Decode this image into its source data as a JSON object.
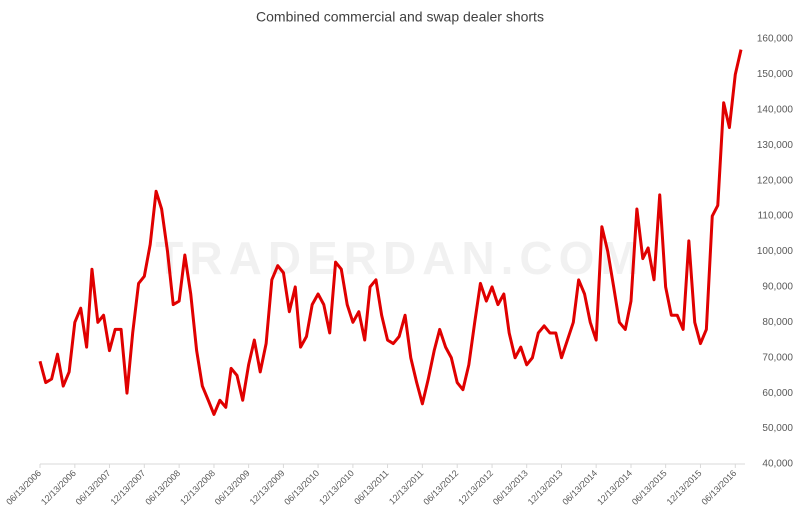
{
  "chart_data": {
    "type": "line",
    "title": "Combined commercial and swap dealer shorts",
    "watermark": "TRADERDAN.COM",
    "x": [
      "06/13/2006",
      "07/13/2006",
      "08/13/2006",
      "09/13/2006",
      "10/13/2006",
      "11/13/2006",
      "12/13/2006",
      "01/13/2007",
      "02/13/2007",
      "03/13/2007",
      "04/13/2007",
      "05/13/2007",
      "06/13/2007",
      "07/13/2007",
      "08/13/2007",
      "09/13/2007",
      "10/13/2007",
      "11/13/2007",
      "12/13/2007",
      "01/13/2008",
      "02/13/2008",
      "03/13/2008",
      "04/13/2008",
      "05/13/2008",
      "06/13/2008",
      "07/13/2008",
      "08/13/2008",
      "09/13/2008",
      "10/13/2008",
      "11/13/2008",
      "12/13/2008",
      "01/13/2009",
      "02/13/2009",
      "03/13/2009",
      "04/13/2009",
      "05/13/2009",
      "06/13/2009",
      "07/13/2009",
      "08/13/2009",
      "09/13/2009",
      "10/13/2009",
      "11/13/2009",
      "12/13/2009",
      "01/13/2010",
      "02/13/2010",
      "03/13/2010",
      "04/13/2010",
      "05/13/2010",
      "06/13/2010",
      "07/13/2010",
      "08/13/2010",
      "09/13/2010",
      "10/13/2010",
      "11/13/2010",
      "12/13/2010",
      "01/13/2011",
      "02/13/2011",
      "03/13/2011",
      "04/13/2011",
      "05/13/2011",
      "06/13/2011",
      "07/13/2011",
      "08/13/2011",
      "09/13/2011",
      "10/13/2011",
      "11/13/2011",
      "12/13/2011",
      "01/13/2012",
      "02/13/2012",
      "03/13/2012",
      "04/13/2012",
      "05/13/2012",
      "06/13/2012",
      "07/13/2012",
      "08/13/2012",
      "09/13/2012",
      "10/13/2012",
      "11/13/2012",
      "12/13/2012",
      "01/13/2013",
      "02/13/2013",
      "03/13/2013",
      "04/13/2013",
      "05/13/2013",
      "06/13/2013",
      "07/13/2013",
      "08/13/2013",
      "09/13/2013",
      "10/13/2013",
      "11/13/2013",
      "12/13/2013",
      "01/13/2014",
      "02/13/2014",
      "03/13/2014",
      "04/13/2014",
      "05/13/2014",
      "06/13/2014",
      "07/13/2014",
      "08/13/2014",
      "09/13/2014",
      "10/13/2014",
      "11/13/2014",
      "12/13/2014",
      "01/13/2015",
      "02/13/2015",
      "03/13/2015",
      "04/13/2015",
      "05/13/2015",
      "06/13/2015",
      "07/13/2015",
      "08/13/2015",
      "09/13/2015",
      "10/13/2015",
      "11/13/2015",
      "12/13/2015",
      "01/13/2016",
      "02/13/2016",
      "03/13/2016",
      "04/13/2016",
      "05/13/2016",
      "06/13/2016",
      "07/13/2016"
    ],
    "series": [
      {
        "name": "Combined commercial and swap dealer shorts",
        "color": "#e00000",
        "values": [
          69000,
          63000,
          64000,
          71000,
          62000,
          66000,
          80000,
          84000,
          73000,
          95000,
          80000,
          82000,
          72000,
          78000,
          78000,
          60000,
          77000,
          91000,
          93000,
          102000,
          117000,
          112000,
          100000,
          85000,
          86000,
          99000,
          88000,
          72000,
          62000,
          58000,
          54000,
          58000,
          56000,
          67000,
          65000,
          58000,
          68000,
          75000,
          66000,
          74000,
          92000,
          96000,
          94000,
          83000,
          90000,
          73000,
          76000,
          85000,
          88000,
          85000,
          77000,
          97000,
          95000,
          85000,
          80000,
          83000,
          75000,
          90000,
          92000,
          82000,
          75000,
          74000,
          76000,
          82000,
          70000,
          63000,
          57000,
          64000,
          72000,
          78000,
          73000,
          70000,
          63000,
          61000,
          68000,
          80000,
          91000,
          86000,
          90000,
          85000,
          88000,
          77000,
          70000,
          73000,
          68000,
          70000,
          77000,
          79000,
          77000,
          77000,
          70000,
          75000,
          80000,
          92000,
          88000,
          80000,
          75000,
          107000,
          100000,
          90000,
          80000,
          78000,
          86000,
          112000,
          98000,
          101000,
          92000,
          116000,
          90000,
          82000,
          82000,
          78000,
          103000,
          80000,
          74000,
          78000,
          110000,
          113000,
          142000,
          135000,
          150000,
          157000
        ]
      }
    ],
    "xlim": [
      "06/13/2006",
      "07/13/2016"
    ],
    "xticks": [
      "06/13/2006",
      "12/13/2006",
      "06/13/2007",
      "12/13/2007",
      "06/13/2008",
      "12/13/2008",
      "06/13/2009",
      "12/13/2009",
      "06/13/2010",
      "12/13/2010",
      "06/13/2011",
      "12/13/2011",
      "06/13/2012",
      "12/13/2012",
      "06/13/2013",
      "12/13/2013",
      "06/13/2014",
      "12/13/2014",
      "06/13/2015",
      "12/13/2015",
      "06/13/2016"
    ],
    "ylim": [
      40000,
      160000
    ],
    "yticks": [
      {
        "value": 40000,
        "label": "40,000"
      },
      {
        "value": 50000,
        "label": "50,000"
      },
      {
        "value": 60000,
        "label": "60,000"
      },
      {
        "value": 70000,
        "label": "70,000"
      },
      {
        "value": 80000,
        "label": "80,000"
      },
      {
        "value": 90000,
        "label": "90,000"
      },
      {
        "value": 100000,
        "label": "100,000"
      },
      {
        "value": 110000,
        "label": "110,000"
      },
      {
        "value": 120000,
        "label": "120,000"
      },
      {
        "value": 130000,
        "label": "130,000"
      },
      {
        "value": 140000,
        "label": "140,000"
      },
      {
        "value": 150000,
        "label": "150,000"
      },
      {
        "value": 160000,
        "label": "160,000"
      }
    ],
    "grid": false,
    "y_axis_side": "right"
  }
}
